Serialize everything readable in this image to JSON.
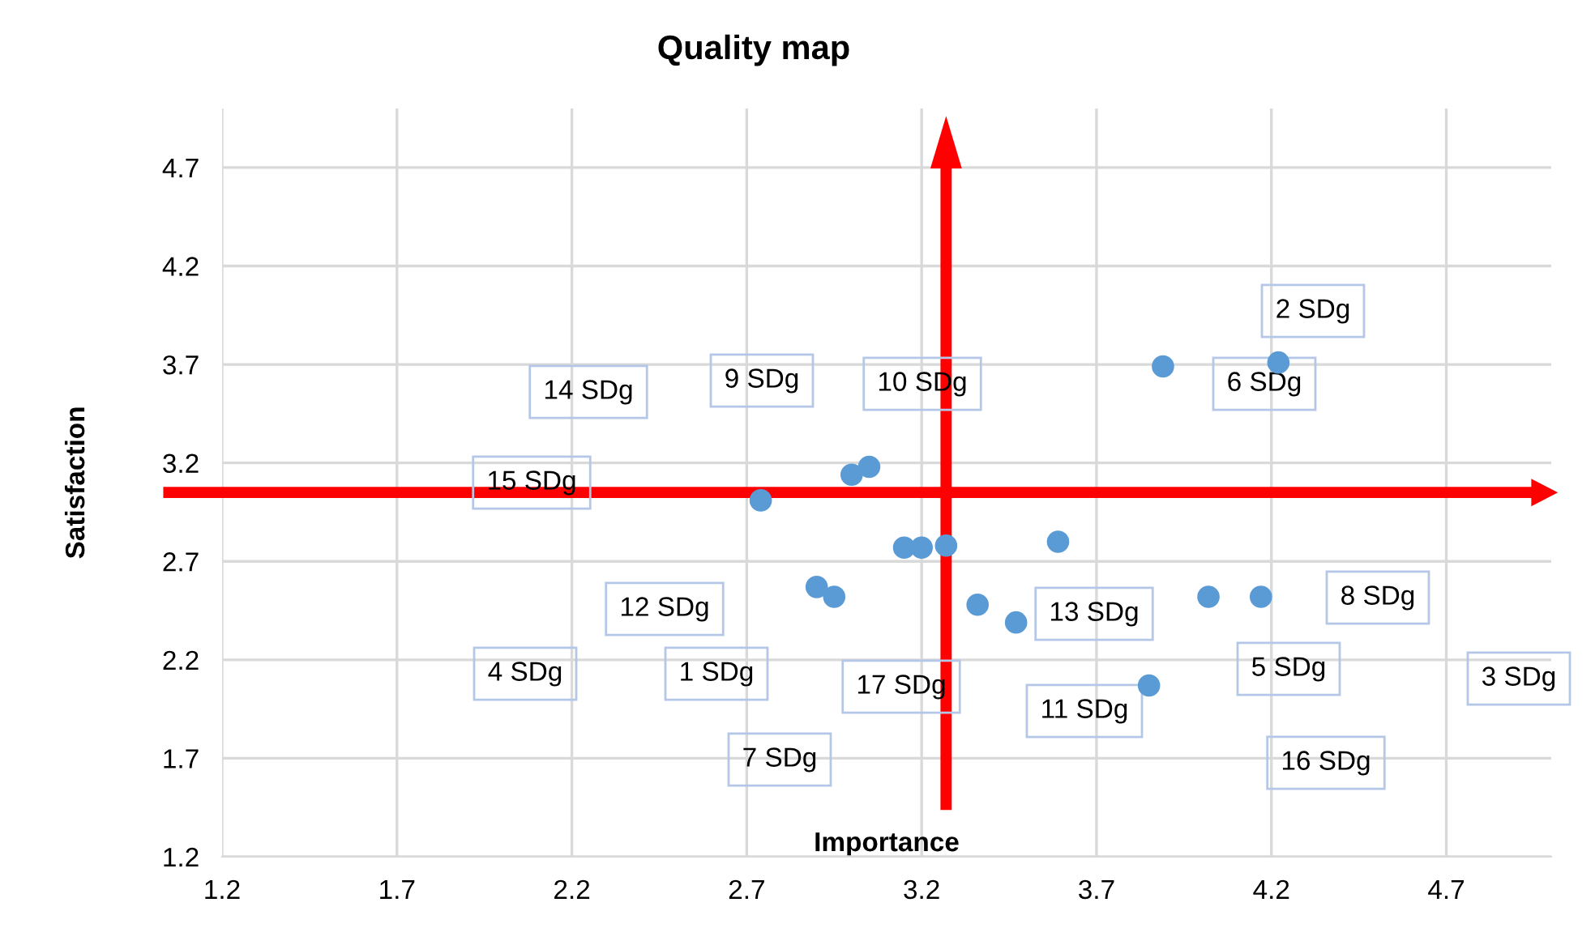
{
  "chart_data": {
    "type": "scatter",
    "title": "Quality map",
    "xlabel": "Importance",
    "ylabel": "Satisfaction",
    "x": [
      2.74,
      2.9,
      2.95,
      3.0,
      3.05,
      3.15,
      3.2,
      3.27,
      3.36,
      3.47,
      3.59,
      3.85,
      3.89,
      4.02,
      4.17,
      4.22
    ],
    "series": [
      {
        "color": "#5b9bd5",
        "values": [
          3.01,
          2.57,
          2.52,
          3.14,
          3.18,
          2.77,
          2.77,
          2.78,
          2.48,
          2.39,
          2.8,
          2.07,
          3.69,
          2.52,
          2.52,
          3.71
        ]
      }
    ],
    "xlim": [
      1.2,
      5.0
    ],
    "ylim": [
      1.2,
      5.0
    ],
    "xticks": [
      1.2,
      1.7,
      2.2,
      2.7,
      3.2,
      3.7,
      4.2,
      4.7
    ],
    "yticks": [
      1.2,
      1.7,
      2.2,
      2.7,
      3.2,
      3.7,
      4.2,
      4.7
    ],
    "grid": true,
    "marker": "circle",
    "ref_lines": [
      {
        "axis": "x",
        "value": 3.27,
        "color": "#ff0000"
      },
      {
        "axis": "y",
        "value": 3.05,
        "color": "#ff0000"
      }
    ],
    "annotations": [
      "14 SDg",
      "9 SDg",
      "10 SDg",
      "15 SDg",
      "12 SDg",
      "4 SDg",
      "1 SDg",
      "7 SDg",
      "17 SDg",
      "13 SDg",
      "11 SDg",
      "6 SDg",
      "2 SDg",
      "8 SDg",
      "5 SDg",
      "3 SDg",
      "16 SDg"
    ]
  }
}
